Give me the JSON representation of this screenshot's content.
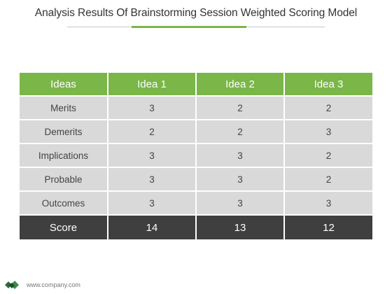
{
  "title": "Analysis Results Of Brainstorming Session Weighted Scoring Model",
  "colors": {
    "accent": "#7ab648",
    "header_bg": "#7ab648",
    "row_bg": "#d9d9d9",
    "footer_bg": "#3f3f3f"
  },
  "table": {
    "headers": [
      "Ideas",
      "Idea 1",
      "Idea 2",
      "Idea 3"
    ],
    "rows": [
      {
        "label": "Merits",
        "values": [
          "3",
          "2",
          "2"
        ]
      },
      {
        "label": "Demerits",
        "values": [
          "2",
          "2",
          "3"
        ]
      },
      {
        "label": "Implications",
        "values": [
          "3",
          "3",
          "2"
        ]
      },
      {
        "label": "Probable",
        "values": [
          "3",
          "3",
          "2"
        ]
      },
      {
        "label": "Outcomes",
        "values": [
          "3",
          "3",
          "3"
        ]
      }
    ],
    "total": {
      "label": "Score",
      "values": [
        "14",
        "13",
        "12"
      ]
    }
  },
  "footer": {
    "url": "www.company.com",
    "logo_icon": "company-logo-icon"
  }
}
